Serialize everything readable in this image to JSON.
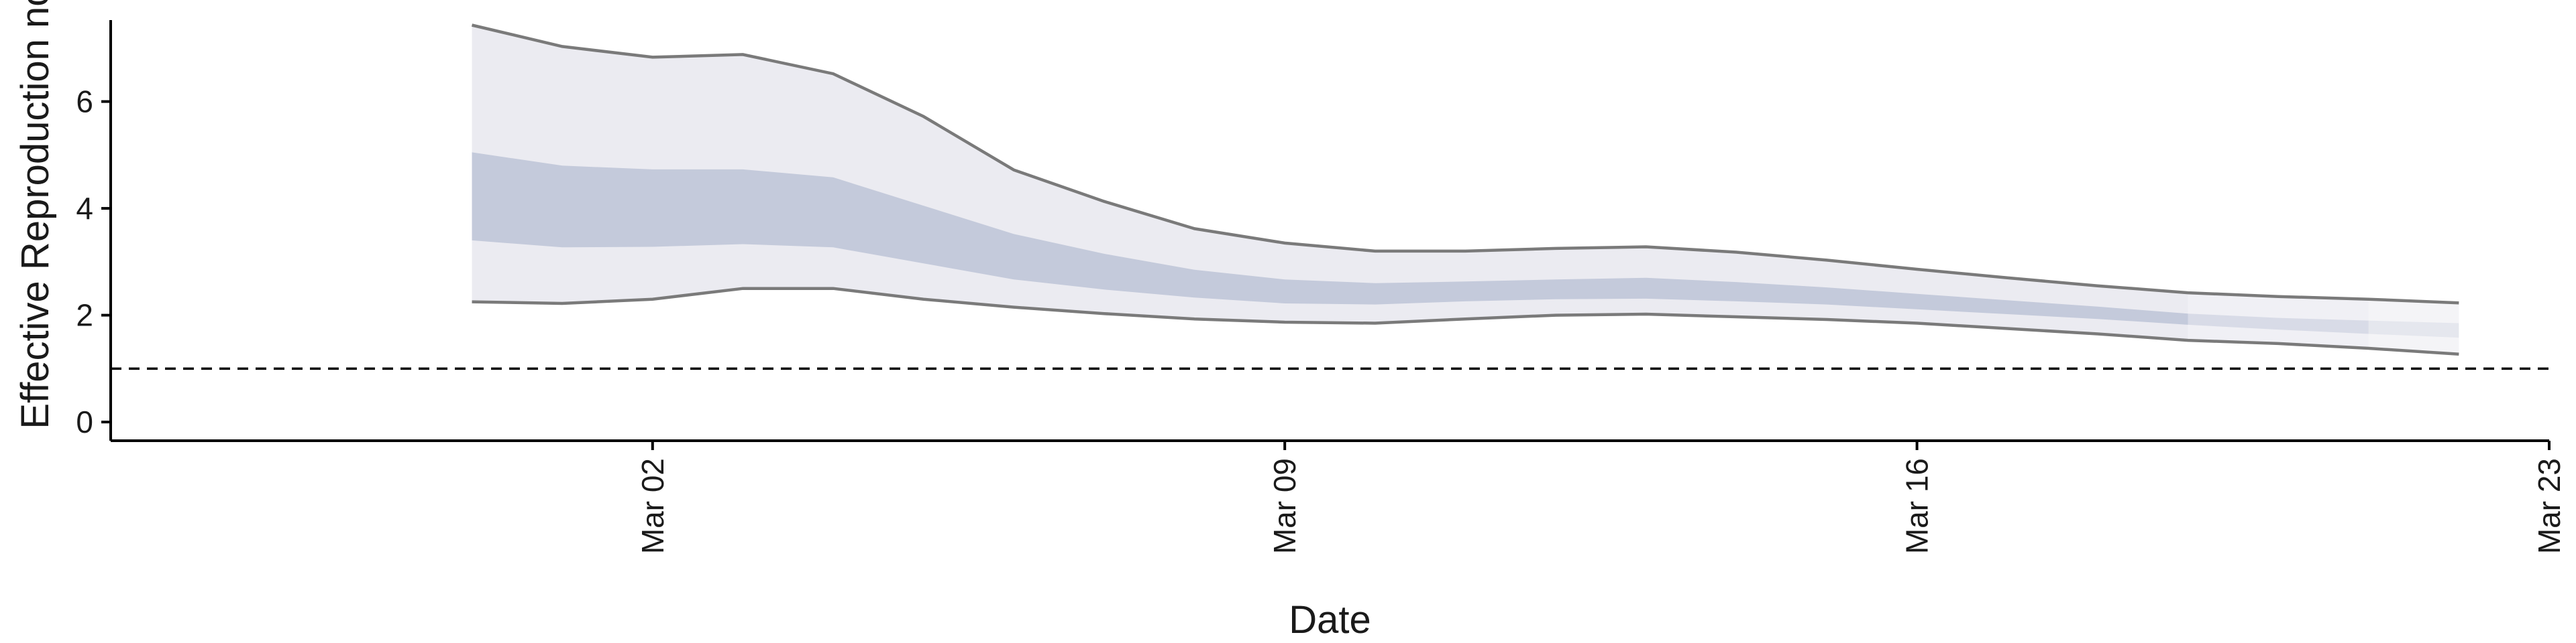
{
  "chart_data": {
    "type": "area",
    "xlabel": "Date",
    "ylabel": "Effective Reproduction no",
    "xlim": [
      "2020-02-25",
      "2020-03-23"
    ],
    "ylim": [
      -0.35,
      7.65
    ],
    "x_ticks": [
      {
        "date": "2020-03-02",
        "label": "Mar 02"
      },
      {
        "date": "2020-03-09",
        "label": "Mar 09"
      },
      {
        "date": "2020-03-16",
        "label": "Mar 16"
      },
      {
        "date": "2020-03-23",
        "label": "Mar 23"
      }
    ],
    "y_ticks": [
      0,
      2,
      4,
      6
    ],
    "reference_line": 1,
    "grid": false,
    "colors": {
      "outer_band": "#ebebf1",
      "inner_band": "#c4cadb",
      "band_edge": "#7a7a7a",
      "reference": "#000000",
      "axis": "#000000"
    },
    "dates": [
      "2020-02-29",
      "2020-03-01",
      "2020-03-02",
      "2020-03-03",
      "2020-03-04",
      "2020-03-05",
      "2020-03-06",
      "2020-03-07",
      "2020-03-08",
      "2020-03-09",
      "2020-03-10",
      "2020-03-11",
      "2020-03-12",
      "2020-03-13",
      "2020-03-14",
      "2020-03-15",
      "2020-03-16",
      "2020-03-17",
      "2020-03-18",
      "2020-03-19",
      "2020-03-20",
      "2020-03-21",
      "2020-03-22"
    ],
    "outer_lower": [
      2.25,
      2.22,
      2.3,
      2.5,
      2.5,
      2.3,
      2.15,
      2.03,
      1.93,
      1.87,
      1.85,
      1.93,
      2.0,
      2.02,
      1.97,
      1.92,
      1.85,
      1.75,
      1.65,
      1.53,
      1.47,
      1.38,
      1.27
    ],
    "inner_lower": [
      3.4,
      3.27,
      3.28,
      3.33,
      3.27,
      2.97,
      2.67,
      2.48,
      2.33,
      2.22,
      2.2,
      2.26,
      2.3,
      2.31,
      2.26,
      2.2,
      2.11,
      2.02,
      1.93,
      1.82,
      1.73,
      1.65,
      1.58
    ],
    "inner_upper": [
      5.05,
      4.8,
      4.73,
      4.73,
      4.58,
      4.05,
      3.52,
      3.15,
      2.85,
      2.67,
      2.6,
      2.63,
      2.67,
      2.7,
      2.62,
      2.52,
      2.4,
      2.28,
      2.16,
      2.03,
      1.95,
      1.9,
      1.85
    ],
    "outer_upper": [
      7.43,
      7.03,
      6.83,
      6.88,
      6.52,
      5.72,
      4.72,
      4.13,
      3.62,
      3.35,
      3.2,
      3.2,
      3.25,
      3.28,
      3.18,
      3.03,
      2.86,
      2.7,
      2.55,
      2.42,
      2.35,
      2.3,
      2.23
    ],
    "estimate_type_dates": [
      "2020-03-19",
      "2020-03-21"
    ]
  }
}
